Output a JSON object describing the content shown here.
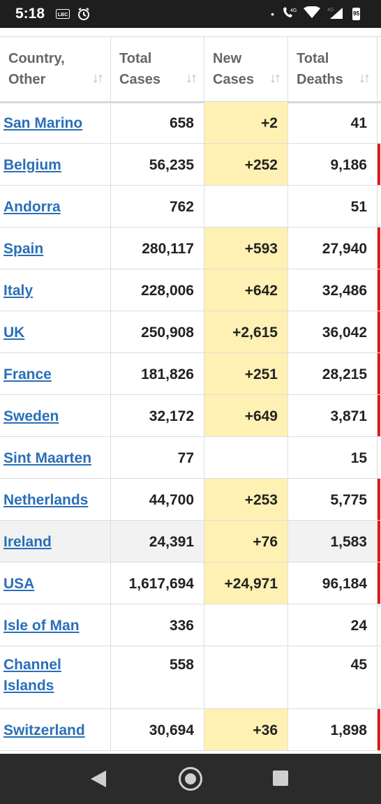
{
  "status_bar": {
    "time": "5:18",
    "left_icons": [
      "lbc-icon",
      "alarm-icon"
    ],
    "right_icons": [
      "dot-icon",
      "volte-4g-icon",
      "wifi-icon",
      "signal-4g-icon",
      "battery-icon"
    ],
    "net_label_1": "4G",
    "net_label_2": "4G",
    "battery_level": "95"
  },
  "table": {
    "headers": [
      {
        "line1": "Country,",
        "line2": "Other"
      },
      {
        "line1": "Total",
        "line2": "Cases"
      },
      {
        "line1": "New",
        "line2": "Cases"
      },
      {
        "line1": "Total",
        "line2": "Deaths"
      }
    ],
    "sort_glyph": "↓↑",
    "rows": [
      {
        "country": "San Marino",
        "total_cases": "658",
        "new_cases": "+2",
        "total_deaths": "41",
        "red": false
      },
      {
        "country": "Belgium",
        "total_cases": "56,235",
        "new_cases": "+252",
        "total_deaths": "9,186",
        "red": true
      },
      {
        "country": "Andorra",
        "total_cases": "762",
        "new_cases": "",
        "total_deaths": "51",
        "red": false
      },
      {
        "country": "Spain",
        "total_cases": "280,117",
        "new_cases": "+593",
        "total_deaths": "27,940",
        "red": true
      },
      {
        "country": "Italy",
        "total_cases": "228,006",
        "new_cases": "+642",
        "total_deaths": "32,486",
        "red": true
      },
      {
        "country": "UK",
        "total_cases": "250,908",
        "new_cases": "+2,615",
        "total_deaths": "36,042",
        "red": true
      },
      {
        "country": "France",
        "total_cases": "181,826",
        "new_cases": "+251",
        "total_deaths": "28,215",
        "red": true
      },
      {
        "country": "Sweden",
        "total_cases": "32,172",
        "new_cases": "+649",
        "total_deaths": "3,871",
        "red": true
      },
      {
        "country": "Sint Maarten",
        "total_cases": "77",
        "new_cases": "",
        "total_deaths": "15",
        "red": false
      },
      {
        "country": "Netherlands",
        "total_cases": "44,700",
        "new_cases": "+253",
        "total_deaths": "5,775",
        "red": true
      },
      {
        "country": "Ireland",
        "total_cases": "24,391",
        "new_cases": "+76",
        "total_deaths": "1,583",
        "red": true,
        "alt": true
      },
      {
        "country": "USA",
        "total_cases": "1,617,694",
        "new_cases": "+24,971",
        "total_deaths": "96,184",
        "red": true
      },
      {
        "country": "Isle of Man",
        "total_cases": "336",
        "new_cases": "",
        "total_deaths": "24",
        "red": false
      },
      {
        "country": "Channel Islands",
        "total_cases": "558",
        "new_cases": "",
        "total_deaths": "45",
        "red": false,
        "tall": true
      },
      {
        "country": "Switzerland",
        "total_cases": "30,694",
        "new_cases": "+36",
        "total_deaths": "1,898",
        "red": true
      }
    ]
  },
  "colors": {
    "link": "#2a6fb8",
    "new_cases_highlight": "#fff1b3",
    "deaths_indicator": "#e0191b"
  },
  "nav_bar": {
    "buttons": [
      "back-icon",
      "home-icon",
      "recents-icon"
    ]
  }
}
